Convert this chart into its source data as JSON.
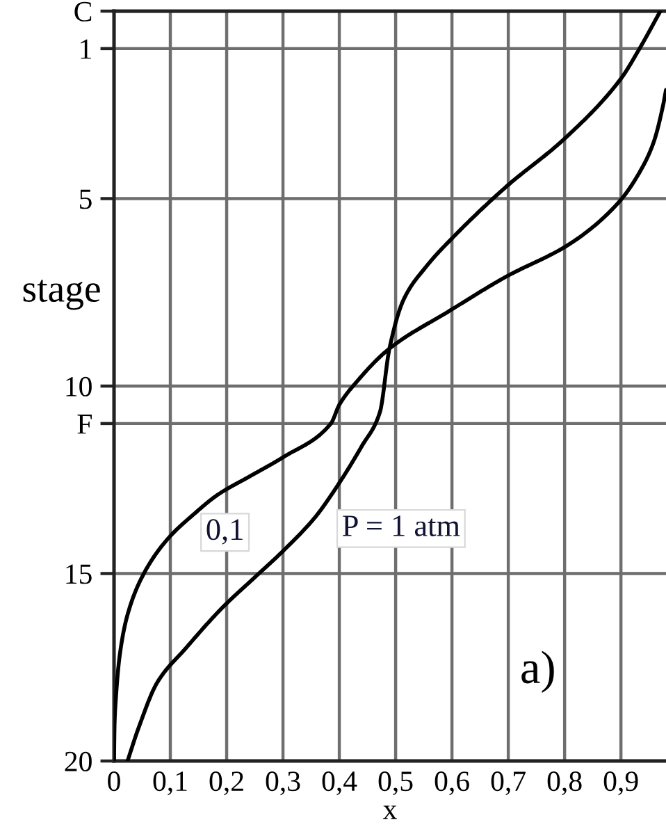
{
  "chart_data": {
    "type": "line",
    "xlabel": "x",
    "ylabel": "stage",
    "xlim": [
      0,
      0.98
    ],
    "ylim": [
      20,
      0
    ],
    "xticks": [
      0,
      {
        "value": 0.1,
        "label": "0,1"
      },
      {
        "value": 0.2,
        "label": "0,2"
      },
      {
        "value": 0.3,
        "label": "0,3"
      },
      {
        "value": 0.4,
        "label": "0,4"
      },
      {
        "value": 0.5,
        "label": "0,5"
      },
      {
        "value": 0.6,
        "label": "0,6"
      },
      {
        "value": 0.7,
        "label": "0,7"
      },
      {
        "value": 0.8,
        "label": "0,8"
      },
      {
        "value": 0.9,
        "label": "0,9"
      }
    ],
    "yticks": [
      {
        "value": 0,
        "label": "C"
      },
      1,
      5,
      10,
      {
        "value": 11,
        "label": "F"
      },
      15,
      20
    ],
    "grid": true,
    "series": [
      {
        "color": "#000000",
        "x": [
          0,
          0.001,
          0.003,
          0.01,
          0.024,
          0.053,
          0.094,
          0.143,
          0.184,
          0.242,
          0.3,
          0.385,
          0.4,
          0.43,
          0.489,
          0.595,
          0.694,
          0.81,
          0.896,
          0.933,
          0.958,
          0.975,
          0.98
        ],
        "values": [
          20,
          19.0,
          18.4,
          17.2,
          16.1,
          15.0,
          14.1,
          13.4,
          12.9,
          12.4,
          11.9,
          11.0,
          10.5,
          9.9,
          9.0,
          8.0,
          7.1,
          6.2,
          5.1,
          4.3,
          3.5,
          2.5,
          2.1
        ]
      },
      {
        "color": "#000000",
        "x": [
          0.024,
          0.044,
          0.077,
          0.127,
          0.193,
          0.25,
          0.3,
          0.357,
          0.386,
          0.44,
          0.472,
          0.489,
          0.514,
          0.555,
          0.604,
          0.695,
          0.8,
          0.9,
          0.933,
          0.97
        ],
        "values": [
          20,
          19.1,
          17.9,
          17.0,
          15.9,
          15.1,
          14.4,
          13.5,
          12.9,
          11.6,
          10.7,
          9.0,
          7.7,
          6.8,
          6.0,
          4.7,
          3.4,
          1.8,
          1.0,
          0
        ]
      }
    ],
    "annotations": [
      "0,1",
      "P = 1 atm",
      "a)"
    ]
  }
}
